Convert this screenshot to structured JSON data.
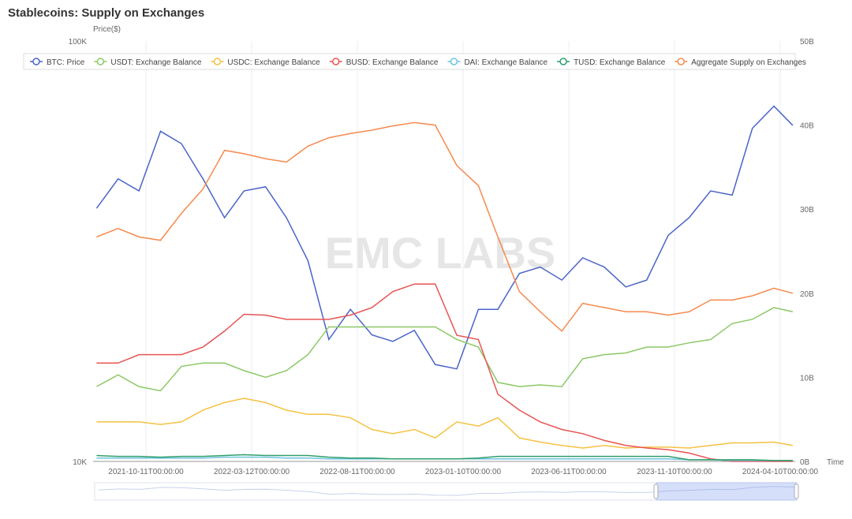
{
  "title": "Stablecoins: Supply on Exchanges",
  "watermark": "EMC LABS",
  "chart_data": {
    "type": "line",
    "title": "Stablecoins: Supply on Exchanges",
    "xlabel": "Time",
    "ylabel_left": "Price($)",
    "left_axis": {
      "scale": "log",
      "range": [
        10000,
        100000
      ],
      "tick_labels": [
        "10K",
        "100K"
      ]
    },
    "right_axis": {
      "scale": "linear",
      "range": [
        0,
        50
      ],
      "unit": "B",
      "tick_labels": [
        "0B",
        "10B",
        "20B",
        "30B",
        "40B",
        "50B"
      ]
    },
    "x_tick_labels": [
      "2021-10-11T00:00:00",
      "2022-03-12T00:00:00",
      "2022-08-11T00:00:00",
      "2023-01-10T00:00:00",
      "2023-06-11T00:00:00",
      "2023-11-10T00:00:00",
      "2024-04-10T00:00:00"
    ],
    "x_tick_dates": [
      "2021-10-11",
      "2022-03-12",
      "2022-08-11",
      "2023-01-10",
      "2023-06-11",
      "2023-11-10",
      "2024-04-10"
    ],
    "grid": "vertical",
    "legend_position": "top",
    "x": [
      "2021-08-01",
      "2021-09-01",
      "2021-10-01",
      "2021-11-01",
      "2021-12-01",
      "2022-01-01",
      "2022-02-01",
      "2022-03-01",
      "2022-04-01",
      "2022-05-01",
      "2022-06-01",
      "2022-07-01",
      "2022-08-01",
      "2022-09-01",
      "2022-10-01",
      "2022-11-01",
      "2022-12-01",
      "2023-01-01",
      "2023-02-01",
      "2023-03-01",
      "2023-04-01",
      "2023-05-01",
      "2023-06-01",
      "2023-07-01",
      "2023-08-01",
      "2023-09-01",
      "2023-10-01",
      "2023-11-01",
      "2023-12-01",
      "2024-01-01",
      "2024-02-01",
      "2024-03-01",
      "2024-04-01",
      "2024-04-28"
    ],
    "series": [
      {
        "name": "BTC: Price",
        "axis": "left",
        "color": "#4a64c8",
        "values": [
          40000,
          47000,
          44000,
          61000,
          57000,
          47000,
          38000,
          44000,
          45000,
          38000,
          30000,
          19500,
          23000,
          20000,
          19300,
          20500,
          17000,
          16600,
          23000,
          23000,
          28000,
          29000,
          27000,
          30500,
          29000,
          26000,
          27000,
          34500,
          38000,
          44000,
          43000,
          62000,
          70000,
          63000
        ]
      },
      {
        "name": "USDT: Exchange Balance",
        "axis": "right",
        "color": "#8cc866",
        "values": [
          8.9,
          10.3,
          8.9,
          8.4,
          11.3,
          11.7,
          11.7,
          10.8,
          10.0,
          10.8,
          12.7,
          16.0,
          16.0,
          16.0,
          16.0,
          16.0,
          16.0,
          14.5,
          13.6,
          9.4,
          8.9,
          9.1,
          8.9,
          12.2,
          12.7,
          12.9,
          13.6,
          13.6,
          14.1,
          14.5,
          16.4,
          16.9,
          18.3,
          17.8
        ]
      },
      {
        "name": "USDC: Exchange Balance",
        "axis": "right",
        "color": "#f5c242",
        "values": [
          4.7,
          4.7,
          4.7,
          4.4,
          4.7,
          6.1,
          7.0,
          7.5,
          7.0,
          6.1,
          5.6,
          5.6,
          5.2,
          3.8,
          3.3,
          3.8,
          2.8,
          4.7,
          4.2,
          5.2,
          2.8,
          2.3,
          1.9,
          1.6,
          1.9,
          1.6,
          1.7,
          1.7,
          1.6,
          1.9,
          2.2,
          2.2,
          2.3,
          1.9
        ]
      },
      {
        "name": "BUSD: Exchange Balance",
        "axis": "right",
        "color": "#e85454",
        "values": [
          11.7,
          11.7,
          12.7,
          12.7,
          12.7,
          13.6,
          15.5,
          17.5,
          17.4,
          16.9,
          16.9,
          16.9,
          17.4,
          18.3,
          20.2,
          21.1,
          21.1,
          15.0,
          14.5,
          8.0,
          6.1,
          4.7,
          3.8,
          3.3,
          2.5,
          1.9,
          1.6,
          1.4,
          1.0,
          0.3,
          0,
          0,
          0,
          0
        ]
      },
      {
        "name": "DAI: Exchange Balance",
        "axis": "right",
        "color": "#6ec3e0",
        "values": [
          0.4,
          0.4,
          0.4,
          0.4,
          0.4,
          0.4,
          0.5,
          0.5,
          0.5,
          0.4,
          0.4,
          0.3,
          0.3,
          0.3,
          0.3,
          0.3,
          0.3,
          0.3,
          0.3,
          0.3,
          0.3,
          0.3,
          0.3,
          0.3,
          0.3,
          0.3,
          0.3,
          0.3,
          0.2,
          0.2,
          0.1,
          0.1,
          0.1,
          0.1
        ]
      },
      {
        "name": "TUSD: Exchange Balance",
        "axis": "right",
        "color": "#2e9e6a",
        "values": [
          0.7,
          0.6,
          0.6,
          0.5,
          0.6,
          0.6,
          0.7,
          0.8,
          0.7,
          0.7,
          0.7,
          0.5,
          0.4,
          0.4,
          0.3,
          0.3,
          0.3,
          0.3,
          0.4,
          0.6,
          0.6,
          0.6,
          0.6,
          0.6,
          0.6,
          0.6,
          0.6,
          0.6,
          0.2,
          0.2,
          0.2,
          0.2,
          0.1,
          0.1
        ]
      },
      {
        "name": "Aggregate Supply on Exchanges",
        "axis": "right",
        "color": "#f58a4e",
        "values": [
          26.7,
          27.7,
          26.7,
          26.3,
          29.5,
          32.4,
          37.0,
          36.6,
          36.0,
          35.6,
          37.5,
          38.5,
          39.0,
          39.4,
          39.9,
          40.3,
          40.0,
          35.2,
          32.8,
          26.7,
          20.2,
          17.8,
          15.5,
          18.8,
          18.3,
          17.8,
          17.8,
          17.4,
          17.8,
          19.2,
          19.2,
          19.7,
          20.6,
          20.0
        ]
      }
    ]
  }
}
